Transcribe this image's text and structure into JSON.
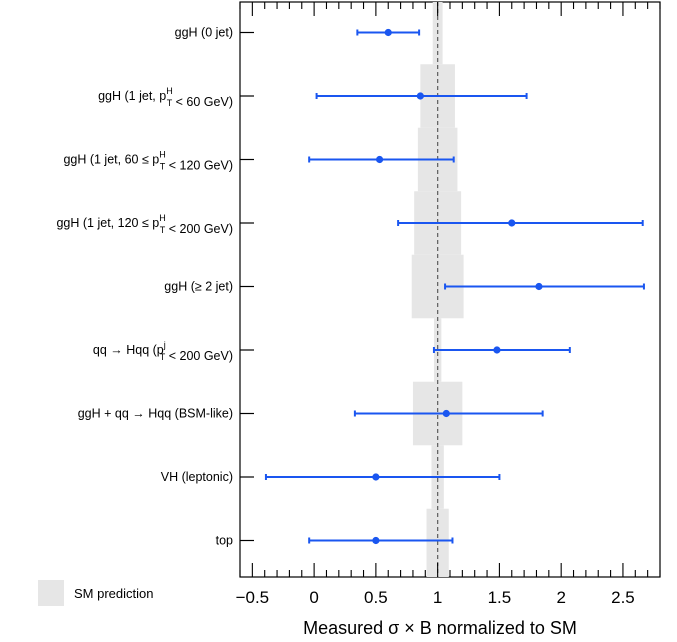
{
  "chart_data": {
    "type": "scatter",
    "xlabel": "Measured σ × B normalized to SM",
    "xlim": [
      -0.6,
      2.8
    ],
    "xticks": [
      -0.5,
      0,
      0.5,
      1,
      1.5,
      2,
      2.5
    ],
    "xtick_labels": [
      "−0.5",
      "0",
      "0.5",
      "1",
      "1.5",
      "2",
      "2.5"
    ],
    "reference_line": 1,
    "legend": {
      "label": "SM prediction",
      "placement": "bottom-left"
    },
    "colors": {
      "points": "#1a56f0",
      "sm_band": "#e6e6e6",
      "reference": "#666666"
    },
    "categories": [
      {
        "label": "ggH (0 jet)",
        "value": 0.6,
        "err_low": 0.35,
        "err_high": 0.85,
        "sm_low": 0.96,
        "sm_high": 1.04
      },
      {
        "label": "ggH (1 jet, p_T^H < 60 GeV)",
        "value": 0.86,
        "err_low": 0.02,
        "err_high": 1.72,
        "sm_low": 0.86,
        "sm_high": 1.14
      },
      {
        "label": "ggH (1 jet, 60 ≤ p_T^H < 120 GeV)",
        "value": 0.53,
        "err_low": -0.04,
        "err_high": 1.13,
        "sm_low": 0.84,
        "sm_high": 1.16
      },
      {
        "label": "ggH (1 jet, 120 ≤ p_T^H < 200 GeV)",
        "value": 1.6,
        "err_low": 0.68,
        "err_high": 2.66,
        "sm_low": 0.81,
        "sm_high": 1.19
      },
      {
        "label": "ggH (≥ 2 jet)",
        "value": 1.82,
        "err_low": 1.06,
        "err_high": 2.67,
        "sm_low": 0.79,
        "sm_high": 1.21
      },
      {
        "label": "qq → Hqq (p_T^j < 200 GeV)",
        "value": 1.48,
        "err_low": 0.97,
        "err_high": 2.07,
        "sm_low": 0.97,
        "sm_high": 1.03
      },
      {
        "label": "ggH + qq → Hqq (BSM-like)",
        "value": 1.07,
        "err_low": 0.33,
        "err_high": 1.85,
        "sm_low": 0.8,
        "sm_high": 1.2
      },
      {
        "label": "VH (leptonic)",
        "value": 0.5,
        "err_low": -0.39,
        "err_high": 1.5,
        "sm_low": 0.95,
        "sm_high": 1.05
      },
      {
        "label": "top",
        "value": 0.5,
        "err_low": -0.04,
        "err_high": 1.12,
        "sm_low": 0.91,
        "sm_high": 1.09
      }
    ]
  }
}
